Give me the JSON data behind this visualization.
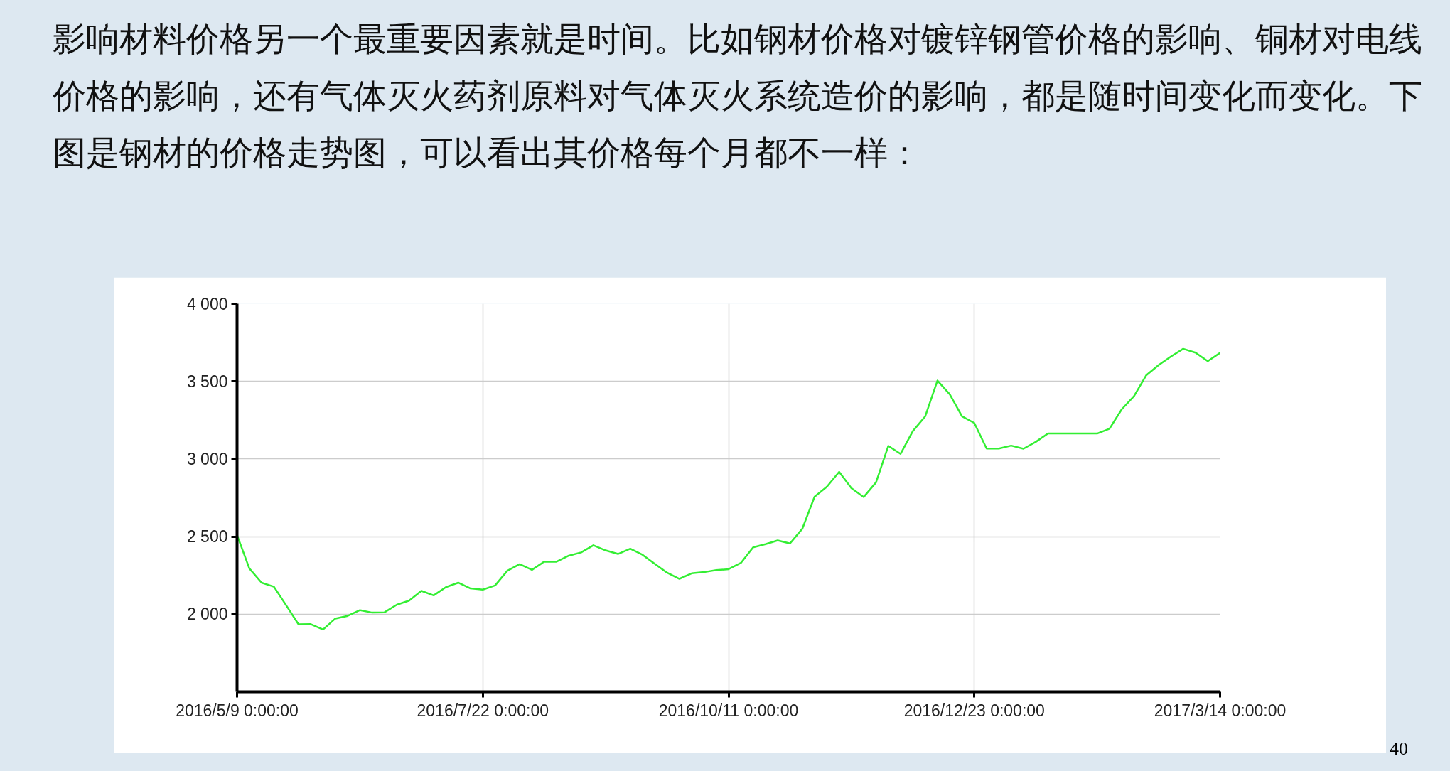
{
  "chart_data": {
    "type": "line",
    "title": "影响材料价格另一个最重要因素就是时间。比如钢材价格对镀锌钢管价格的影响、铜材对电线价格的影响，还有气体灭火药剂原料对气体灭火系统造价的影响，都是随时间变化而变化。下图是钢材的价格走势图，可以看出其价格每个月都不一样：",
    "annotations": [
      "40"
    ],
    "categories": [
      "2016/5/9 0:00:00",
      null,
      null,
      null,
      null,
      null,
      null,
      null,
      null,
      null,
      null,
      null,
      null,
      null,
      null,
      null,
      null,
      null,
      null,
      null,
      "2016/7/22 0:00:00",
      null,
      null,
      null,
      null,
      null,
      null,
      null,
      null,
      null,
      null,
      null,
      null,
      null,
      null,
      null,
      null,
      null,
      null,
      null,
      "2016/10/11 0:00:00",
      null,
      null,
      null,
      null,
      null,
      null,
      null,
      null,
      null,
      null,
      null,
      null,
      null,
      null,
      null,
      null,
      null,
      null,
      null,
      "2016/12/23 0:00:00",
      null,
      null,
      null,
      null,
      null,
      null,
      null,
      null,
      null,
      null,
      null,
      null,
      null,
      null,
      null,
      null,
      null,
      null,
      null,
      "2017/3/14 0:00:00"
    ],
    "series": [
      {
        "color": "#33ee33",
        "values": [
          2510,
          2295,
          2203,
          2177,
          2057,
          1935,
          1936,
          1901,
          1972,
          1989,
          2026,
          2010,
          2012,
          2061,
          2087,
          2150,
          2121,
          2174,
          2203,
          2166,
          2158,
          2185,
          2280,
          2322,
          2286,
          2339,
          2338,
          2377,
          2398,
          2444,
          2411,
          2388,
          2422,
          2383,
          2324,
          2267,
          2228,
          2263,
          2271,
          2284,
          2290,
          2330,
          2431,
          2451,
          2475,
          2456,
          2550,
          2757,
          2821,
          2917,
          2812,
          2755,
          2849,
          3084,
          3033,
          3180,
          3274,
          3505,
          3417,
          3275,
          3232,
          3067,
          3067,
          3086,
          3066,
          3110,
          3164,
          3164,
          3164,
          3164,
          3164,
          3195,
          3320,
          3405,
          3540,
          3605,
          3660,
          3710,
          3685,
          3630,
          3684
        ]
      }
    ],
    "ylim": [
      1500,
      4000
    ],
    "yticks": [
      {
        "value": 2000,
        "label": "2 000"
      },
      {
        "value": 2500,
        "label": "2 500"
      },
      {
        "value": 3000,
        "label": "3 000"
      },
      {
        "value": 3500,
        "label": "3 500"
      },
      {
        "value": 4000,
        "label": "4 000"
      }
    ],
    "grid": true,
    "line_style": "solid"
  }
}
